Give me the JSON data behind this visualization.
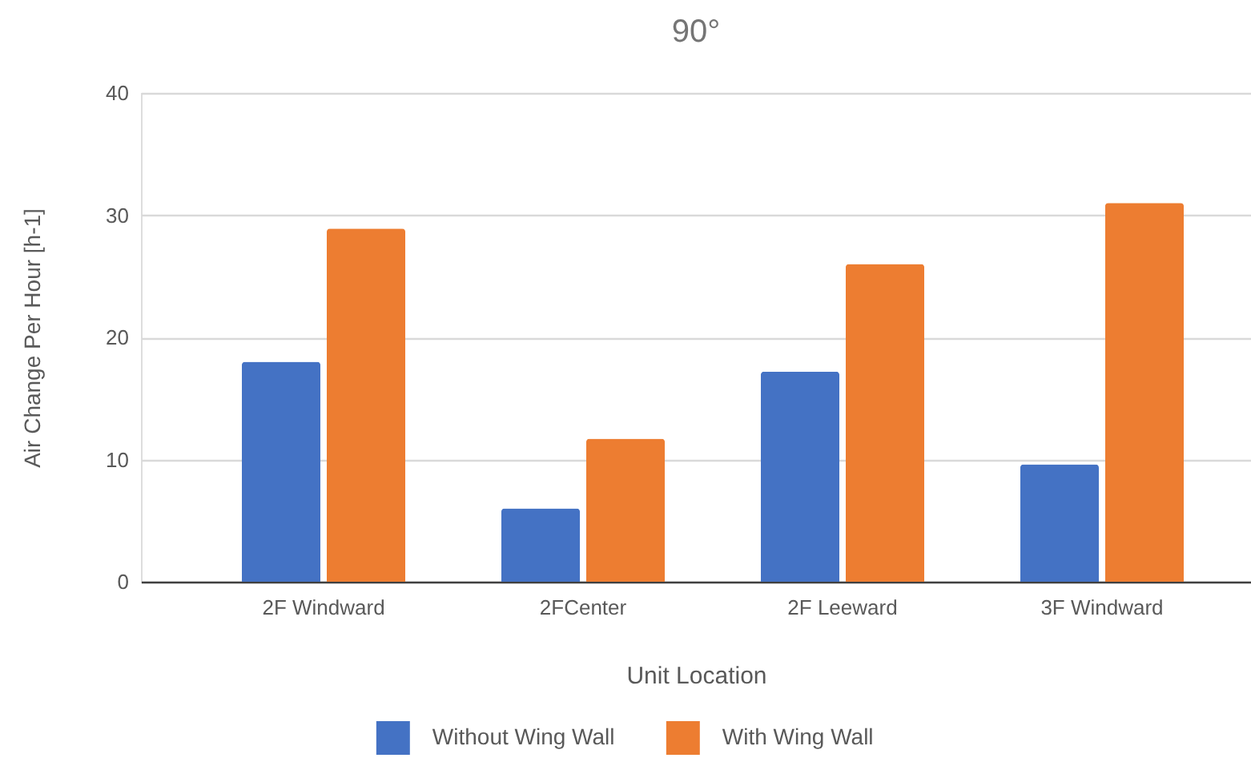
{
  "chart_data": {
    "type": "bar",
    "title": "90°",
    "xlabel": "Unit Location",
    "ylabel": "Air Change Per Hour [h-1]",
    "categories": [
      "2F Windward",
      "2FCenter",
      "2F Leeward",
      "3F Windward"
    ],
    "series": [
      {
        "name": "Without Wing Wall",
        "color": "#4472c4",
        "values": [
          18,
          6,
          17.2,
          9.6
        ]
      },
      {
        "name": "With Wing Wall",
        "color": "#ed7d31",
        "values": [
          28.9,
          11.7,
          26,
          31
        ]
      }
    ],
    "ylim": [
      0,
      40
    ],
    "yticks": [
      0,
      10,
      20,
      30,
      40
    ],
    "grid": "y",
    "legend": "bottom"
  }
}
